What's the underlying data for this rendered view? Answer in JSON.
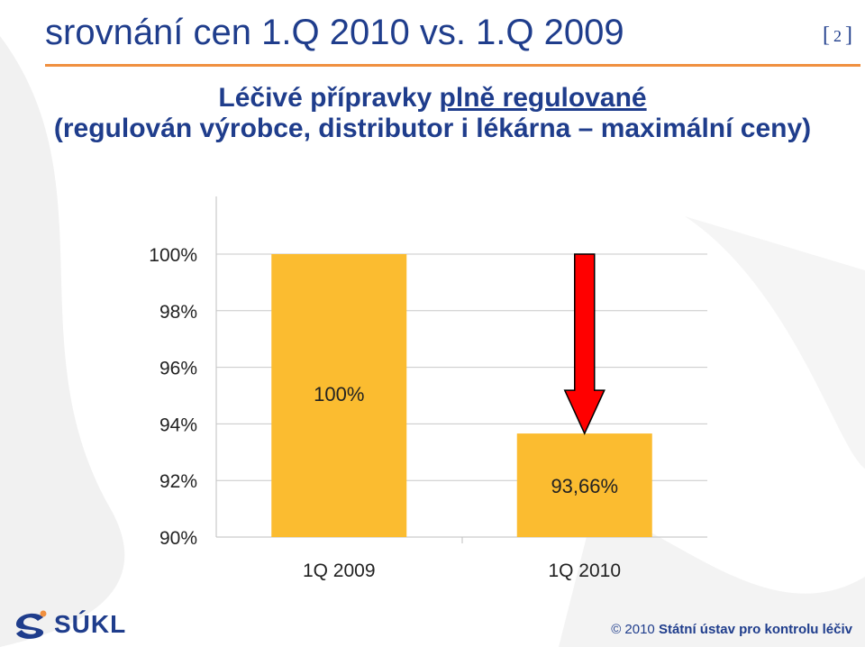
{
  "slide": {
    "title": "srovnání cen 1.Q 2010 vs. 1.Q 2009",
    "page_number": "2",
    "page_open": "[",
    "page_close": "]",
    "subtitle_line1_prefix": "Léčivé přípravky ",
    "subtitle_line1_underlined": "plně regulované",
    "subtitle_line2": "(regulován výrobce, distributor i lékárna – maximální ceny)"
  },
  "logo": {
    "text": "SÚKL"
  },
  "footer": {
    "copyright": "© 2010",
    "org": "Státní ústav pro kontrolu léčiv"
  },
  "colors": {
    "title": "#1f3d8c",
    "rule": "#f09040",
    "bar": "#fbbc30",
    "arrow": "#ff0000"
  },
  "chart_data": {
    "type": "bar",
    "categories": [
      "1Q 2009",
      "1Q 2010"
    ],
    "values": [
      100,
      93.66
    ],
    "data_labels": [
      "100%",
      "93,66%"
    ],
    "y_ticks": [
      "90%",
      "92%",
      "94%",
      "96%",
      "98%",
      "100%"
    ],
    "ylim": [
      90,
      100
    ],
    "grid": true,
    "annotation": "red downward arrow from 100% to 1Q 2010 bar"
  }
}
